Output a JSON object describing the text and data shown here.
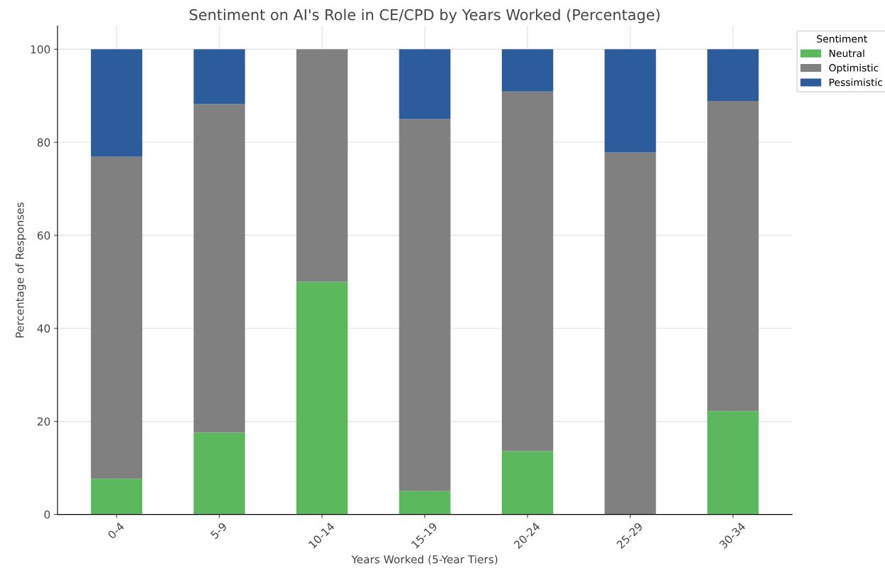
{
  "chart_data": {
    "type": "bar",
    "title": "Sentiment on AI's Role in CE/CPD by Years Worked (Percentage)",
    "xlabel": "Years Worked (5-Year Tiers)",
    "ylabel": "Percentage of Responses",
    "legend_title": "Sentiment",
    "categories": [
      "0-4",
      "5-9",
      "10-14",
      "15-19",
      "20-24",
      "25-29",
      "30-34"
    ],
    "stacked": true,
    "series": [
      {
        "name": "Neutral",
        "color": "#5cb85c",
        "values": [
          7.7,
          17.6,
          50,
          5,
          13.6,
          0,
          22.2
        ]
      },
      {
        "name": "Optimistic",
        "color": "#808080",
        "values": [
          69.2,
          70.6,
          50,
          80,
          77.3,
          77.8,
          66.7
        ]
      },
      {
        "name": "Pessimistic",
        "color": "#2c5c9c",
        "values": [
          23.1,
          11.8,
          0,
          15,
          9.1,
          22.2,
          11.1
        ]
      }
    ],
    "ylim": [
      0,
      105
    ],
    "yticks": [
      0,
      20,
      40,
      60,
      80,
      100
    ],
    "grid": true,
    "legend": "top right"
  }
}
